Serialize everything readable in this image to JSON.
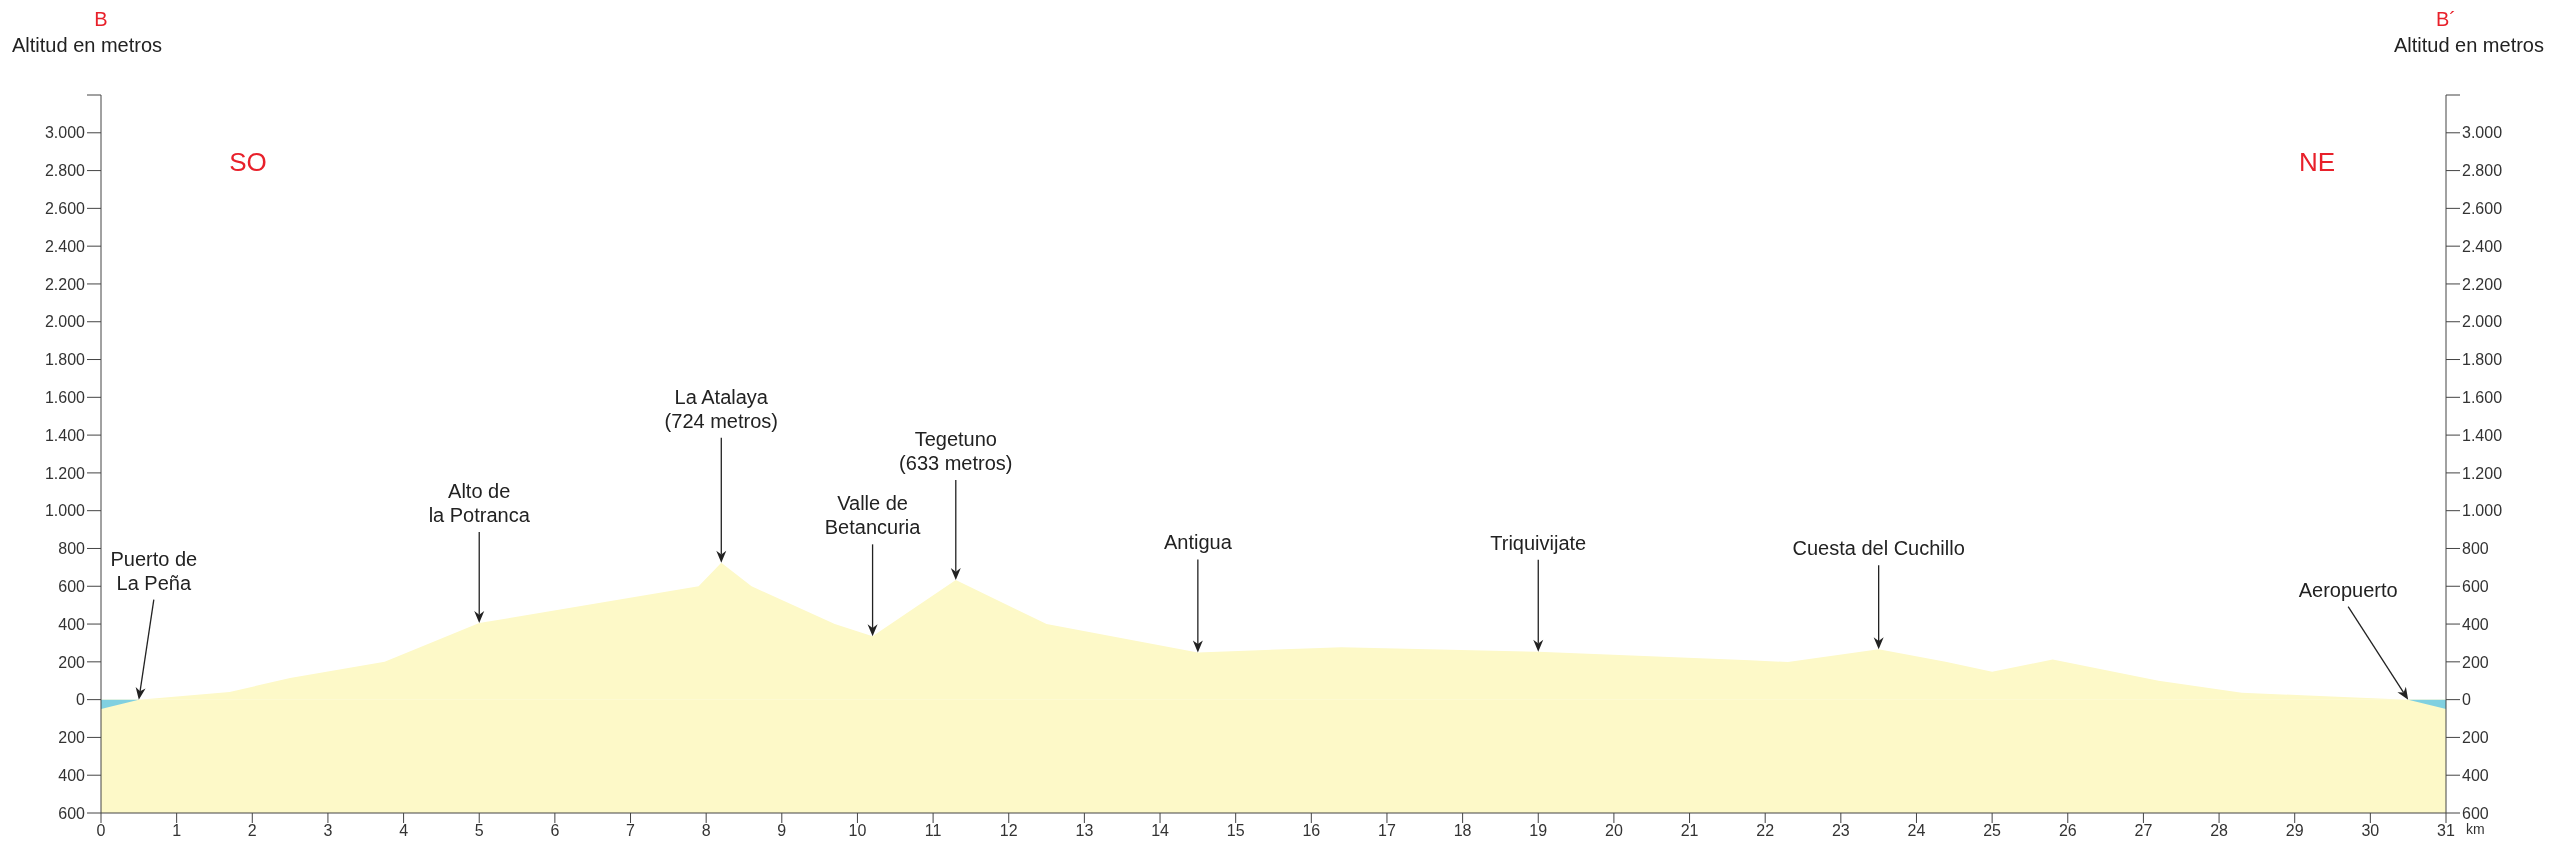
{
  "chart_data": {
    "type": "area",
    "ylabel": "Altitud en metros",
    "y2label": "Altitud en metros",
    "xlabel": "km",
    "x": [
      0,
      0.5,
      1.7,
      2.5,
      3.75,
      5,
      7.9,
      8.2,
      8.6,
      9.7,
      10.2,
      11.3,
      12.5,
      14.5,
      16.4,
      19,
      21.8,
      22.3,
      23.5,
      24.4,
      25,
      25.8,
      27.2,
      28.3,
      29.1,
      30.5,
      31
    ],
    "series": [
      {
        "color": "#fdf9c8",
        "values": [
          -50,
          0,
          40,
          115,
          200,
          405,
          600,
          724,
          600,
          400,
          335,
          633,
          400,
          250,
          277,
          253,
          208,
          199,
          266,
          199,
          147,
          213,
          100,
          37,
          23,
          0,
          -50
        ]
      },
      {
        "color": "#80d0e0",
        "values": [
          -50,
          0,
          null,
          null,
          null,
          null,
          null,
          null,
          null,
          null,
          null,
          null,
          null,
          null,
          null,
          null,
          null,
          null,
          null,
          null,
          null,
          null,
          null,
          null,
          null,
          0,
          -50
        ]
      }
    ],
    "bands": [
      {
        "axis": "y",
        "from": -600,
        "to": 0,
        "color": "#fdf9c8"
      }
    ],
    "xlim": [
      0,
      31
    ],
    "xticks": [
      0,
      1,
      2,
      3,
      4,
      5,
      6,
      7,
      8,
      9,
      10,
      11,
      12,
      13,
      14,
      15,
      16,
      17,
      18,
      19,
      20,
      21,
      22,
      23,
      24,
      25,
      26,
      27,
      28,
      29,
      30,
      31
    ],
    "ylim": [
      -600,
      3200
    ],
    "yticks": [
      {
        "value": -600,
        "label": "600"
      },
      {
        "value": -400,
        "label": "400"
      },
      {
        "value": -200,
        "label": "200"
      },
      0,
      200,
      400,
      600,
      800,
      {
        "value": 1000,
        "label": "1.000"
      },
      {
        "value": 1200,
        "label": "1.200"
      },
      {
        "value": 1400,
        "label": "1.400"
      },
      {
        "value": 1600,
        "label": "1.600"
      },
      {
        "value": 1800,
        "label": "1.800"
      },
      {
        "value": 2000,
        "label": "2.000"
      },
      {
        "value": 2200,
        "label": "2.200"
      },
      {
        "value": 2400,
        "label": "2.400"
      },
      {
        "value": 2600,
        "label": "2.600"
      },
      {
        "value": 2800,
        "label": "2.800"
      },
      {
        "value": 3000,
        "label": "3.000"
      },
      {
        "value": 3200,
        "label": null
      }
    ],
    "y2lim": [
      -600,
      3200
    ],
    "y2ticks": [
      {
        "value": -600,
        "label": "600"
      },
      {
        "value": -400,
        "label": "400"
      },
      {
        "value": -200,
        "label": "200"
      },
      0,
      200,
      400,
      600,
      800,
      {
        "value": 1000,
        "label": "1.000"
      },
      {
        "value": 1200,
        "label": "1.200"
      },
      {
        "value": 1400,
        "label": "1.400"
      },
      {
        "value": 1600,
        "label": "1.600"
      },
      {
        "value": 1800,
        "label": "1.800"
      },
      {
        "value": 2000,
        "label": "2.000"
      },
      {
        "value": 2200,
        "label": "2.200"
      },
      {
        "value": 2400,
        "label": "2.400"
      },
      {
        "value": 2600,
        "label": "2.600"
      },
      {
        "value": 2800,
        "label": "2.800"
      },
      {
        "value": 3000,
        "label": "3.000"
      },
      {
        "value": 3200,
        "label": null
      }
    ],
    "annotations": [
      "B",
      "B´",
      "SO",
      "NE",
      {
        "text": "Puerto de\nLa Peña",
        "x": 0.5,
        "y": 0
      },
      {
        "text": "Alto de\nla Potranca",
        "x": 5,
        "y": 405
      },
      {
        "text": "La Atalaya\n(724 metros)",
        "x": 8.2,
        "y": 724
      },
      {
        "text": "Valle de\nBetancuria",
        "x": 10.2,
        "y": 335
      },
      {
        "text": "Tegetuno\n(633 metros)",
        "x": 11.3,
        "y": 633
      },
      {
        "text": "Antigua",
        "x": 14.5,
        "y": 250
      },
      {
        "text": "Triquivijate",
        "x": 19,
        "y": 253
      },
      {
        "text": "Cuesta del Cuchillo",
        "x": 23.5,
        "y": 266
      },
      {
        "text": "Aeropuerto",
        "x": 30.5,
        "y": 0
      }
    ]
  }
}
